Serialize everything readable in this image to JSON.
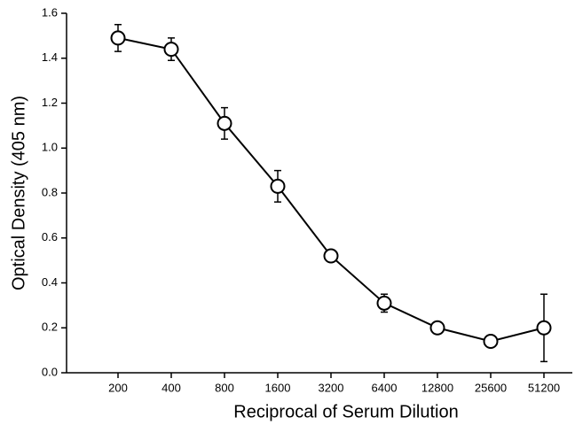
{
  "chart_data": {
    "type": "line",
    "x_label": "Reciprocal of Serum Dilution",
    "y_label": "Optical Density (405 nm)",
    "categories": [
      "200",
      "400",
      "800",
      "1600",
      "3200",
      "6400",
      "12800",
      "25600",
      "51200"
    ],
    "values": [
      1.49,
      1.44,
      1.11,
      0.83,
      0.52,
      0.31,
      0.2,
      0.14,
      0.2
    ],
    "errors": [
      0.06,
      0.05,
      0.07,
      0.07,
      0.02,
      0.04,
      0.02,
      0.02,
      0.15
    ],
    "color": "#000000",
    "ylim": [
      0,
      1.6
    ],
    "yticks": [
      {
        "value": 0,
        "label": "0.0"
      },
      0.2,
      0.4,
      0.6,
      0.8,
      {
        "value": 1,
        "label": "1.0"
      },
      1.2,
      1.4,
      1.6
    ],
    "grid": false
  }
}
